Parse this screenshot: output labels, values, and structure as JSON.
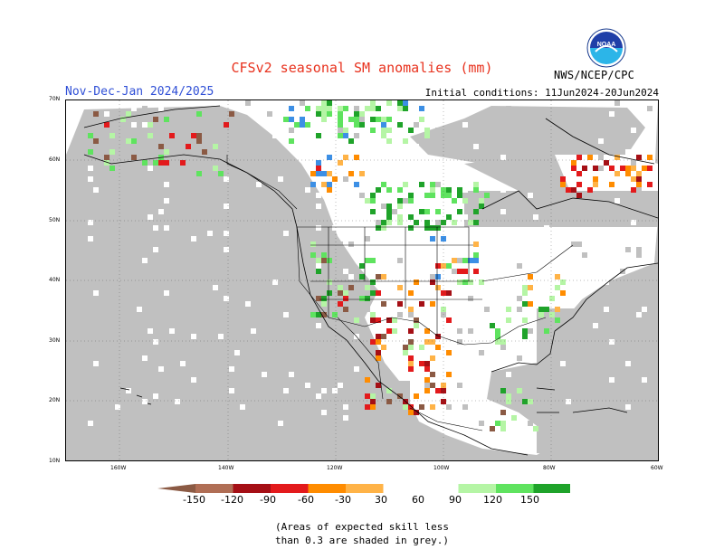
{
  "map": {
    "title": "CFSv2 seasonal SM anomalies (mm)",
    "period": "Nov-Dec-Jan 2024/2025",
    "initial_conditions": "Initial conditions: 11Jun2024-20Jun2024",
    "agency": "NWS/NCEP/CPC",
    "logo_text": "NOAA",
    "lat_labels": [
      "70N",
      "60N",
      "50N",
      "40N",
      "30N",
      "20N",
      "10N"
    ],
    "lon_labels": [
      "160W",
      "140W",
      "120W",
      "100W",
      "80W",
      "60W"
    ],
    "legend": {
      "ticks": [
        "-150",
        "-120",
        "-90",
        "-60",
        "-30",
        "30",
        "60",
        "90",
        "120",
        "150"
      ],
      "colors": [
        "#8b5a44",
        "#b06e55",
        "#a50f15",
        "#e31a1c",
        "#ff8c00",
        "#ffb347",
        "#ffffff",
        "#b5f5a5",
        "#5fe35f",
        "#1fa32a",
        "#3c8fe5",
        "#1f5fd6"
      ]
    },
    "note_lines": [
      "(Areas of expected skill less",
      "than 0.3 are shaded in grey.)"
    ],
    "colors": {
      "skill_grey": "#c0c0c0",
      "title_red": "#e8321e",
      "period_blue": "#2f4fd6"
    }
  }
}
